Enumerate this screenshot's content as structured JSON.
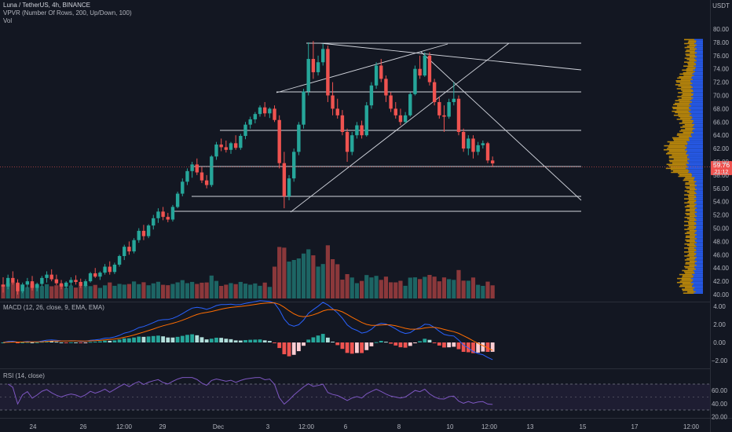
{
  "header": {
    "symbol_line": "Luna / TetherUS, 4h, BINANCE",
    "vpvr_line": "VPVR (Number Of Rows, 200, Up/Down, 100)",
    "vol_line": "Vol",
    "currency": "USDT"
  },
  "price_axis": {
    "ticks": [
      "80.00",
      "78.00",
      "76.00",
      "74.00",
      "72.00",
      "70.00",
      "68.00",
      "66.00",
      "64.00",
      "62.00",
      "60.00",
      "58.00",
      "56.00",
      "54.00",
      "52.00",
      "50.00",
      "48.00",
      "46.00",
      "44.00",
      "42.00",
      "40.00"
    ],
    "last_price": "59.76",
    "countdown": "21:12",
    "last_price_color": "#ef5350"
  },
  "macd": {
    "label": "MACD (12, 26, close, 9, EMA, EMA)",
    "ticks": [
      "4.00",
      "2.00",
      "0.00",
      "−2.00"
    ]
  },
  "rsi": {
    "label": "RSI (14, close)",
    "ticks": [
      "60.00",
      "40.00",
      "20.00"
    ]
  },
  "time_axis": {
    "labels": [
      "24",
      "26",
      "12:00",
      "29",
      "Dec",
      "3",
      "12:00",
      "6",
      "8",
      "10",
      "12:00",
      "13",
      "15",
      "17",
      "12:00"
    ]
  },
  "colors": {
    "background": "#131722",
    "up": "#26a69a",
    "down": "#ef5350",
    "vp_up": "#2962ff",
    "vp_down": "#b8860b",
    "macd_line": "#2962ff",
    "signal_line": "#ff6d00",
    "rsi_line": "#7e57c2"
  },
  "chart_data": {
    "type": "candlestick",
    "interval": "4h",
    "price_range": [
      40,
      81
    ],
    "series": [
      {
        "name": "Luna / TetherUS",
        "ohlc": [
          [
            41.5,
            42.6,
            40.3,
            41.2
          ],
          [
            41.2,
            43.0,
            40.8,
            42.5
          ],
          [
            42.5,
            43.5,
            41.5,
            41.8
          ],
          [
            41.8,
            42.3,
            40.0,
            40.5
          ],
          [
            40.5,
            41.8,
            40.2,
            41.5
          ],
          [
            41.5,
            42.5,
            41.0,
            42.0
          ],
          [
            42.0,
            42.8,
            40.6,
            41.0
          ],
          [
            41.0,
            41.8,
            40.5,
            41.6
          ],
          [
            41.6,
            42.8,
            41.2,
            42.5
          ],
          [
            42.5,
            43.5,
            41.8,
            43.0
          ],
          [
            43.0,
            43.8,
            42.0,
            42.3
          ],
          [
            42.3,
            43.0,
            41.4,
            41.7
          ],
          [
            41.7,
            42.2,
            40.8,
            41.2
          ],
          [
            41.2,
            42.0,
            40.9,
            41.8
          ],
          [
            41.8,
            42.6,
            41.3,
            42.2
          ],
          [
            42.2,
            42.9,
            41.5,
            41.9
          ],
          [
            41.9,
            42.4,
            41.0,
            41.3
          ],
          [
            41.3,
            42.3,
            41.1,
            42.0
          ],
          [
            42.0,
            43.4,
            41.8,
            43.2
          ],
          [
            43.2,
            44.0,
            42.5,
            42.7
          ],
          [
            42.7,
            43.5,
            42.2,
            43.3
          ],
          [
            43.3,
            44.6,
            43.0,
            44.2
          ],
          [
            44.2,
            45.0,
            43.0,
            43.4
          ],
          [
            43.4,
            44.8,
            43.1,
            44.5
          ],
          [
            44.5,
            46.0,
            44.2,
            45.8
          ],
          [
            45.8,
            47.5,
            45.2,
            47.2
          ],
          [
            47.2,
            48.0,
            46.0,
            46.5
          ],
          [
            46.5,
            48.5,
            46.2,
            48.2
          ],
          [
            48.2,
            50.0,
            47.8,
            49.6
          ],
          [
            49.6,
            50.5,
            48.2,
            48.8
          ],
          [
            48.8,
            50.6,
            48.5,
            50.4
          ],
          [
            50.4,
            52.0,
            49.8,
            51.5
          ],
          [
            51.5,
            53.0,
            50.8,
            52.5
          ],
          [
            52.5,
            53.2,
            51.2,
            51.7
          ],
          [
            51.7,
            52.3,
            50.9,
            51.3
          ],
          [
            51.3,
            53.5,
            51.0,
            53.2
          ],
          [
            53.2,
            55.5,
            53.0,
            55.2
          ],
          [
            55.2,
            57.5,
            54.8,
            57.0
          ],
          [
            57.0,
            59.0,
            56.5,
            58.6
          ],
          [
            58.6,
            60.0,
            57.6,
            59.6
          ],
          [
            59.6,
            60.5,
            58.0,
            58.4
          ],
          [
            58.4,
            59.2,
            56.8,
            57.2
          ],
          [
            57.2,
            58.0,
            56.0,
            56.5
          ],
          [
            56.5,
            61.0,
            56.2,
            60.8
          ],
          [
            60.8,
            63.0,
            60.3,
            62.6
          ],
          [
            62.6,
            63.5,
            61.6,
            62.2
          ],
          [
            62.2,
            63.2,
            61.4,
            61.8
          ],
          [
            61.8,
            63.0,
            61.2,
            62.8
          ],
          [
            62.8,
            64.0,
            61.8,
            62.1
          ],
          [
            62.1,
            64.2,
            61.8,
            63.9
          ],
          [
            63.9,
            66.0,
            63.4,
            65.6
          ],
          [
            65.6,
            66.8,
            65.0,
            66.4
          ],
          [
            66.4,
            67.5,
            65.8,
            67.2
          ],
          [
            67.2,
            68.5,
            66.8,
            68.2
          ],
          [
            68.2,
            69.0,
            66.8,
            67.3
          ],
          [
            67.3,
            68.2,
            66.6,
            68.0
          ],
          [
            68.0,
            68.5,
            66.0,
            66.3
          ],
          [
            66.3,
            67.0,
            59.0,
            59.8
          ],
          [
            59.8,
            61.5,
            53.0,
            54.8
          ],
          [
            54.8,
            58.0,
            54.2,
            57.5
          ],
          [
            57.5,
            62.0,
            57.0,
            61.5
          ],
          [
            61.5,
            66.0,
            61.0,
            65.6
          ],
          [
            65.6,
            71.0,
            65.0,
            70.6
          ],
          [
            70.6,
            78.0,
            70.0,
            75.5
          ],
          [
            75.5,
            78.2,
            72.5,
            73.5
          ],
          [
            73.5,
            76.0,
            73.0,
            75.0
          ],
          [
            75.0,
            77.8,
            74.5,
            77.0
          ],
          [
            77.0,
            77.5,
            69.0,
            70.0
          ],
          [
            70.0,
            72.0,
            67.0,
            68.0
          ],
          [
            68.0,
            69.5,
            66.5,
            67.0
          ],
          [
            67.0,
            67.8,
            64.0,
            64.5
          ],
          [
            64.5,
            65.0,
            60.0,
            61.5
          ],
          [
            61.5,
            64.5,
            61.0,
            64.0
          ],
          [
            64.0,
            66.0,
            63.5,
            65.5
          ],
          [
            65.5,
            66.2,
            63.5,
            64.0
          ],
          [
            64.0,
            69.0,
            63.8,
            68.5
          ],
          [
            68.5,
            72.0,
            68.0,
            71.5
          ],
          [
            71.5,
            75.0,
            71.0,
            74.5
          ],
          [
            74.5,
            75.5,
            72.0,
            72.5
          ],
          [
            72.5,
            73.0,
            69.0,
            70.0
          ],
          [
            70.0,
            70.5,
            67.5,
            68.0
          ],
          [
            68.0,
            69.0,
            66.5,
            67.0
          ],
          [
            67.0,
            68.0,
            65.5,
            66.0
          ],
          [
            66.0,
            67.5,
            65.8,
            67.0
          ],
          [
            67.0,
            70.5,
            66.8,
            70.2
          ],
          [
            70.2,
            74.5,
            70.0,
            74.0
          ],
          [
            74.0,
            76.0,
            72.5,
            73.0
          ],
          [
            73.0,
            76.5,
            72.8,
            76.0
          ],
          [
            76.0,
            76.5,
            71.5,
            72.0
          ],
          [
            72.0,
            72.5,
            68.5,
            69.0
          ],
          [
            69.0,
            69.8,
            66.5,
            67.0
          ],
          [
            67.0,
            68.5,
            64.5,
            66.8
          ],
          [
            66.8,
            69.5,
            66.5,
            69.0
          ],
          [
            69.0,
            72.0,
            68.5,
            69.5
          ],
          [
            69.5,
            70.0,
            64.0,
            64.5
          ],
          [
            64.5,
            65.0,
            61.5,
            62.0
          ],
          [
            62.0,
            64.0,
            61.0,
            63.5
          ],
          [
            63.5,
            64.0,
            60.5,
            61.5
          ],
          [
            61.5,
            63.0,
            61.0,
            62.5
          ],
          [
            62.5,
            63.2,
            62.0,
            62.8
          ],
          [
            62.8,
            63.0,
            59.8,
            60.2
          ],
          [
            60.2,
            60.8,
            59.2,
            59.76
          ]
        ]
      }
    ]
  }
}
